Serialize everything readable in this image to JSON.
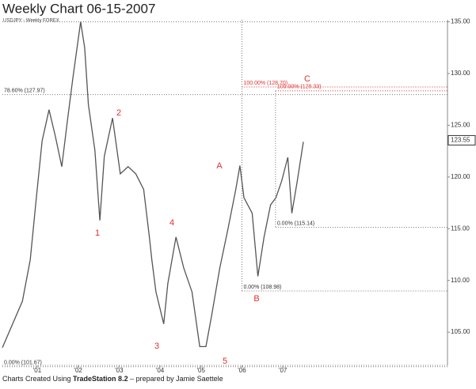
{
  "chart_data": {
    "type": "line",
    "title": "Weekly Chart 06-15-2007",
    "subtitle": "USDJPY - Weekly  FOREX",
    "series": [
      {
        "name": "USDJPY",
        "color": "#555555",
        "x": [
          2000.15,
          2000.64,
          2000.83,
          2000.98,
          2001.12,
          2001.29,
          2001.44,
          2001.6,
          2001.74,
          2001.87,
          2002.06,
          2002.16,
          2002.25,
          2002.41,
          2002.53,
          2002.64,
          2002.84,
          2003.03,
          2003.22,
          2003.41,
          2003.6,
          2003.74,
          2003.8,
          2003.9,
          2004.09,
          2004.19,
          2004.39,
          2004.58,
          2004.78,
          2004.97,
          2005.12,
          2005.26,
          2005.46,
          2005.66,
          2005.85,
          2005.95,
          2006.05,
          2006.25,
          2006.39,
          2006.54,
          2006.7,
          2006.83,
          2006.97,
          2007.12,
          2007.22,
          2007.35,
          2007.5
        ],
        "values": [
          103.5,
          108.0,
          112.0,
          118.0,
          123.5,
          126.5,
          124.0,
          121.0,
          125.5,
          129.5,
          135.0,
          132.5,
          127.0,
          122.6,
          115.8,
          122.0,
          125.7,
          120.3,
          121.0,
          120.3,
          118.8,
          114.2,
          112.0,
          108.9,
          105.8,
          109.7,
          114.2,
          111.2,
          108.9,
          103.6,
          103.6,
          106.6,
          111.2,
          115.0,
          118.8,
          121.1,
          118.0,
          116.5,
          110.4,
          114.2,
          117.3,
          118.0,
          119.6,
          121.9,
          116.5,
          119.6,
          123.4
        ]
      }
    ],
    "xlim": [
      2000.15,
      2011.02
    ],
    "ylim": [
      101.8,
      135.2
    ],
    "xticks": [
      {
        "value": 2001,
        "label": "'01"
      },
      {
        "value": 2002,
        "label": "'02"
      },
      {
        "value": 2003,
        "label": "'03"
      },
      {
        "value": 2004,
        "label": "'04"
      },
      {
        "value": 2005,
        "label": "'05"
      },
      {
        "value": 2006,
        "label": "'06"
      },
      {
        "value": 2007,
        "label": "'07"
      }
    ],
    "yticks": [
      {
        "value": 105,
        "label": "105.00"
      },
      {
        "value": 110,
        "label": "110.00"
      },
      {
        "value": 115,
        "label": "115.00"
      },
      {
        "value": 120,
        "label": "120.00"
      },
      {
        "value": 125,
        "label": "125.00"
      },
      {
        "value": 130,
        "label": "130.00"
      },
      {
        "value": 135,
        "label": "135.00"
      }
    ],
    "last_price": 123.55,
    "levels": [
      {
        "value": 127.97,
        "label": "78.60% (127.97)",
        "from": 2000.15,
        "color": "#777777"
      },
      {
        "value": 128.7,
        "label": "100.00% (128.70)",
        "from": 2006.0,
        "color": "#e03030"
      },
      {
        "value": 128.33,
        "label": "100.00% (128.33)",
        "from": 2006.82,
        "color": "#e03030"
      },
      {
        "value": 115.14,
        "label": "0.00% (115.14)",
        "from": 2006.82,
        "color": "#777777"
      },
      {
        "value": 108.98,
        "label": "0.00% (108.98)",
        "from": 2006.0,
        "color": "#777777"
      },
      {
        "value": 101.67,
        "label": "0.00% (101.67)",
        "from": 2000.15,
        "color": "#777777"
      }
    ],
    "waves": [
      "1",
      "2",
      "3",
      "4",
      "5",
      "A",
      "B",
      "C"
    ],
    "footer": [
      "Charts Created Using ",
      "TradeStation 8.2",
      " – prepared by Jamie Saettele"
    ]
  }
}
